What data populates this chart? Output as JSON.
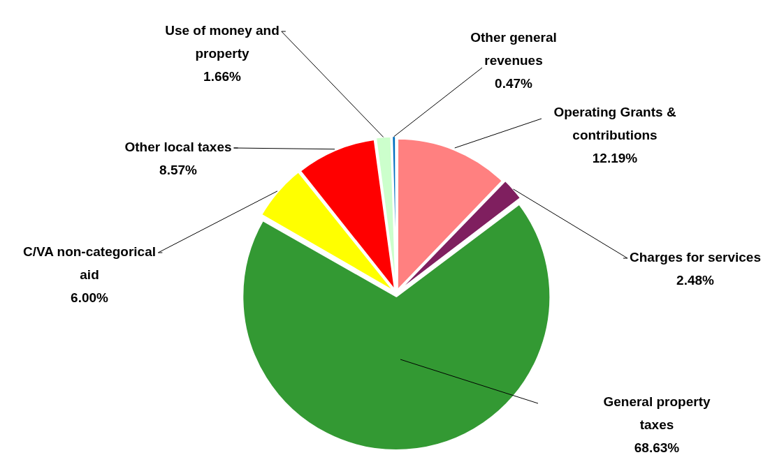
{
  "chart_data": {
    "type": "pie",
    "categories": [
      "Operating Grants & contributions",
      "Charges for services",
      "General property taxes",
      "C/VA non-categorical aid",
      "Other local taxes",
      "Use of money and property",
      "Other general revenues"
    ],
    "values": [
      12.19,
      2.48,
      68.63,
      6.0,
      8.57,
      1.66,
      0.47
    ],
    "value_labels": [
      "12.19%",
      "2.48%",
      "68.63%",
      "6.00%",
      "8.57%",
      "1.66%",
      "0.47%"
    ],
    "colors": [
      "#ff8080",
      "#7f1f5f",
      "#339933",
      "#ffff00",
      "#ff0000",
      "#ccffcc",
      "#0070c0"
    ],
    "legend": false
  }
}
